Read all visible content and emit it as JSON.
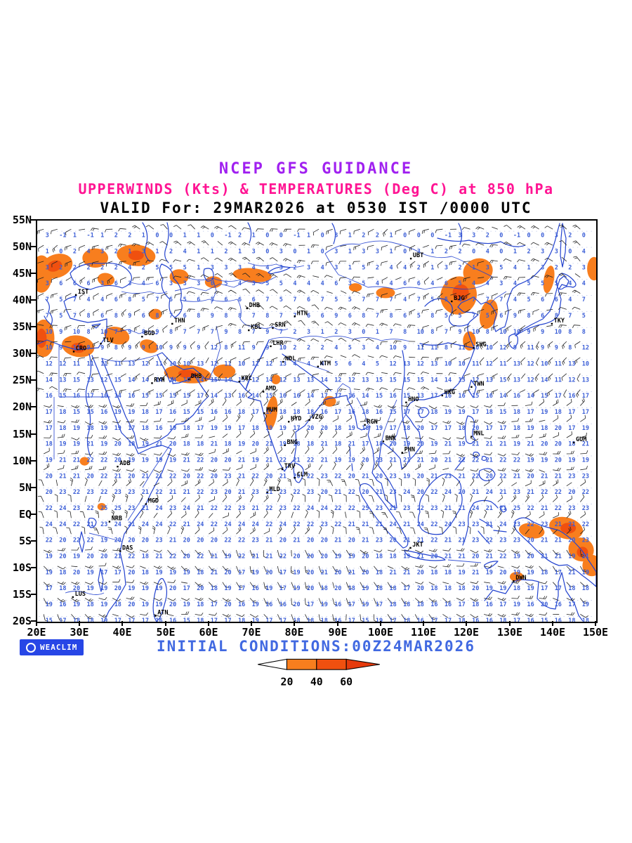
{
  "header": {
    "line1": "NCEP GFS GUIDANCE",
    "line2": "UPPERWINDS (Kts) & TEMPERATURES (Deg C) at 850 hPa",
    "line3": "VALID For: 29MAR2026 at 0530 IST /0000 UTC"
  },
  "footer": {
    "initial_conditions": "INITIAL CONDITIONS:00Z24MAR2026",
    "logo_text": "WEACLIM"
  },
  "colors": {
    "title1": "#A020F0",
    "title2": "#FF1493",
    "valid_text": "#000000",
    "annotation": "#4169E1",
    "coastline": "#2343CF",
    "temperature_text": "#3C5FD7",
    "barb": "#222222",
    "graticule": "#97A8DC",
    "shade20": "#F87E1E",
    "shade40": "#F0500F",
    "shade60": "#E63A0C",
    "legend_tail": "#FFFFFF",
    "logo_bg": "#2746E6",
    "axis_text": "#000000",
    "station_text": "#000000"
  },
  "map": {
    "lon_min": 20,
    "lon_max": 150,
    "lat_min": -20,
    "lat_max": 55,
    "lat_ticks": [
      {
        "label": "55N",
        "lat": 55
      },
      {
        "label": "50N",
        "lat": 50
      },
      {
        "label": "45N",
        "lat": 45
      },
      {
        "label": "40N",
        "lat": 40
      },
      {
        "label": "35N",
        "lat": 35
      },
      {
        "label": "30N",
        "lat": 30
      },
      {
        "label": "25N",
        "lat": 25
      },
      {
        "label": "20N",
        "lat": 20
      },
      {
        "label": "15N",
        "lat": 15
      },
      {
        "label": "10N",
        "lat": 10
      },
      {
        "label": "5N",
        "lat": 5
      },
      {
        "label": "EQ",
        "lat": 0
      },
      {
        "label": "5S",
        "lat": -5
      },
      {
        "label": "10S",
        "lat": -10
      },
      {
        "label": "15S",
        "lat": -15
      },
      {
        "label": "20S",
        "lat": -20
      }
    ],
    "lon_ticks": [
      {
        "label": "20E",
        "lon": 20
      },
      {
        "label": "30E",
        "lon": 30
      },
      {
        "label": "40E",
        "lon": 40
      },
      {
        "label": "50E",
        "lon": 50
      },
      {
        "label": "60E",
        "lon": 60
      },
      {
        "label": "70E",
        "lon": 70
      },
      {
        "label": "80E",
        "lon": 80
      },
      {
        "label": "90E",
        "lon": 90
      },
      {
        "label": "100E",
        "lon": 100
      },
      {
        "label": "110E",
        "lon": 110
      },
      {
        "label": "120E",
        "lon": 120
      },
      {
        "label": "130E",
        "lon": 130
      },
      {
        "label": "140E",
        "lon": 140
      },
      {
        "label": "150E",
        "lon": 150
      }
    ]
  },
  "wind_grid": {
    "lon_step": 3.2,
    "lat_step": 3.0,
    "barb_length": 9
  },
  "legend": {
    "labels": [
      "20",
      "40",
      "60"
    ]
  },
  "stations": [
    {
      "code": "IST",
      "lon": 29.0,
      "lat": 41.1
    },
    {
      "code": "CRO",
      "lon": 28.5,
      "lat": 30.5
    },
    {
      "code": "TLV",
      "lon": 34.8,
      "lat": 32.0
    },
    {
      "code": "BGD",
      "lon": 44.4,
      "lat": 33.3
    },
    {
      "code": "THN",
      "lon": 51.4,
      "lat": 35.7
    },
    {
      "code": "KBL",
      "lon": 69.2,
      "lat": 34.5
    },
    {
      "code": "SRN",
      "lon": 74.8,
      "lat": 34.9
    },
    {
      "code": "LHR",
      "lon": 74.3,
      "lat": 31.5
    },
    {
      "code": "DHB",
      "lon": 68.8,
      "lat": 38.6
    },
    {
      "code": "HTN",
      "lon": 79.9,
      "lat": 37.1
    },
    {
      "code": "RYH",
      "lon": 46.7,
      "lat": 24.6
    },
    {
      "code": "DHB",
      "lon": 55.3,
      "lat": 25.3
    },
    {
      "code": "KRC",
      "lon": 67.0,
      "lat": 24.9
    },
    {
      "code": "NDL",
      "lon": 77.2,
      "lat": 28.6
    },
    {
      "code": "KTM",
      "lon": 85.3,
      "lat": 27.7
    },
    {
      "code": "AMD",
      "lon": 72.6,
      "lat": 23.0
    },
    {
      "code": "MUM",
      "lon": 72.8,
      "lat": 19.0
    },
    {
      "code": "HYD",
      "lon": 78.5,
      "lat": 17.4
    },
    {
      "code": "VZG",
      "lon": 83.3,
      "lat": 17.7
    },
    {
      "code": "BNG",
      "lon": 77.6,
      "lat": 13.0
    },
    {
      "code": "TRV",
      "lon": 77.0,
      "lat": 8.5
    },
    {
      "code": "CLM",
      "lon": 79.9,
      "lat": 6.9
    },
    {
      "code": "MLD",
      "lon": 73.5,
      "lat": 4.2
    },
    {
      "code": "RGN",
      "lon": 96.2,
      "lat": 16.8
    },
    {
      "code": "BNK",
      "lon": 100.5,
      "lat": 13.7
    },
    {
      "code": "PHN",
      "lon": 104.9,
      "lat": 11.6
    },
    {
      "code": "HNO",
      "lon": 105.8,
      "lat": 21.0
    },
    {
      "code": "HKG",
      "lon": 114.2,
      "lat": 22.3
    },
    {
      "code": "TWN",
      "lon": 121.0,
      "lat": 23.9
    },
    {
      "code": "SHG",
      "lon": 121.5,
      "lat": 31.2
    },
    {
      "code": "BJG",
      "lon": 116.4,
      "lat": 39.9
    },
    {
      "code": "UBT",
      "lon": 106.9,
      "lat": 47.9
    },
    {
      "code": "TKY",
      "lon": 139.7,
      "lat": 35.7
    },
    {
      "code": "MNL",
      "lon": 121.0,
      "lat": 14.6
    },
    {
      "code": "GUM",
      "lon": 144.8,
      "lat": 13.5
    },
    {
      "code": "JKT",
      "lon": 106.8,
      "lat": -6.2
    },
    {
      "code": "DWN",
      "lon": 130.8,
      "lat": -12.4
    },
    {
      "code": "ADB",
      "lon": 38.7,
      "lat": 9.0
    },
    {
      "code": "MGD",
      "lon": 45.3,
      "lat": 2.0
    },
    {
      "code": "NRB",
      "lon": 36.8,
      "lat": -1.3
    },
    {
      "code": "DAS",
      "lon": 39.3,
      "lat": -6.8
    },
    {
      "code": "LUS",
      "lon": 28.3,
      "lat": -15.4
    },
    {
      "code": "ATN",
      "lon": 47.5,
      "lat": -18.9
    }
  ],
  "chart_data": {
    "type": "weather-map",
    "model": "NCEP GFS",
    "field": "Upper winds (Kts) and temperatures (Deg C) at 850 hPa",
    "valid": "29MAR2026 at 0530 IST / 0000 UTC",
    "initial_conditions": "00Z24MAR2026",
    "lon_range_deg_east": [
      20,
      150
    ],
    "lat_range_deg": [
      -20,
      55
    ],
    "wind_shade_thresholds_kts": [
      20,
      40,
      60
    ],
    "temperature_profile": [
      {
        "lat": -20,
        "t": 17
      },
      {
        "lat": -10,
        "t": 19
      },
      {
        "lat": 0,
        "t": 23
      },
      {
        "lat": 10,
        "t": 21
      },
      {
        "lat": 20,
        "t": 17
      },
      {
        "lat": 30,
        "t": 11
      },
      {
        "lat": 40,
        "t": 6
      },
      {
        "lat": 50,
        "t": 2
      },
      {
        "lat": 55,
        "t": 0
      }
    ],
    "shaded_regions": [
      {
        "lon": 21,
        "lat": 45,
        "rx": 2.5,
        "ry": 3.5,
        "rot": 0,
        "level": 1
      },
      {
        "lon": 24.5,
        "lat": 46.5,
        "rx": 3.8,
        "ry": 2.2,
        "rot": -20,
        "level": 1
      },
      {
        "lon": 33.5,
        "lat": 48,
        "rx": 3.0,
        "ry": 1.8,
        "rot": 0,
        "level": 1
      },
      {
        "lon": 43,
        "lat": 48.5,
        "rx": 4.5,
        "ry": 2.0,
        "rot": 5,
        "level": 1
      },
      {
        "lon": 36,
        "lat": 44,
        "rx": 2.0,
        "ry": 1.2,
        "rot": 10,
        "level": 1
      },
      {
        "lon": 53,
        "lat": 44.5,
        "rx": 2.2,
        "ry": 1.4,
        "rot": 0,
        "level": 1
      },
      {
        "lon": 61,
        "lat": 43.5,
        "rx": 2.0,
        "ry": 1.1,
        "rot": 0,
        "level": 1
      },
      {
        "lon": 70,
        "lat": 44.8,
        "rx": 4.5,
        "ry": 1.3,
        "rot": 5,
        "level": 1
      },
      {
        "lon": 21.5,
        "lat": 33,
        "rx": 2.5,
        "ry": 3.5,
        "rot": 0,
        "level": 1
      },
      {
        "lon": 29.5,
        "lat": 31.5,
        "rx": 3.8,
        "ry": 2.0,
        "rot": 10,
        "level": 1
      },
      {
        "lon": 38.5,
        "lat": 33.5,
        "rx": 3.0,
        "ry": 1.6,
        "rot": 15,
        "level": 1
      },
      {
        "lon": 46,
        "lat": 31.5,
        "rx": 2.2,
        "ry": 1.2,
        "rot": 20,
        "level": 1
      },
      {
        "lon": 47.5,
        "lat": 37.5,
        "rx": 1.5,
        "ry": 1.0,
        "rot": 0,
        "level": 1
      },
      {
        "lon": 55,
        "lat": 26.3,
        "rx": 5.5,
        "ry": 1.7,
        "rot": 5,
        "level": 1
      },
      {
        "lon": 63.5,
        "lat": 26.8,
        "rx": 2.6,
        "ry": 1.3,
        "rot": 0,
        "level": 1
      },
      {
        "lon": 74.5,
        "lat": 19,
        "rx": 1.3,
        "ry": 3.2,
        "rot": 8,
        "level": 1
      },
      {
        "lon": 75.5,
        "lat": 25.3,
        "rx": 1.1,
        "ry": 0.9,
        "rot": 0,
        "level": 1
      },
      {
        "lon": 88,
        "lat": 21.2,
        "rx": 1.5,
        "ry": 1.0,
        "rot": 0,
        "level": 1
      },
      {
        "lon": 101,
        "lat": 41.5,
        "rx": 2.2,
        "ry": 1.0,
        "rot": 0,
        "level": 1
      },
      {
        "lon": 94,
        "lat": 42.5,
        "rx": 1.5,
        "ry": 0.8,
        "rot": 0,
        "level": 1
      },
      {
        "lon": 118,
        "lat": 41,
        "rx": 4.2,
        "ry": 3.6,
        "rot": 20,
        "level": 1
      },
      {
        "lon": 122.5,
        "lat": 45.5,
        "rx": 3.5,
        "ry": 2.4,
        "rot": -20,
        "level": 1
      },
      {
        "lon": 125,
        "lat": 37.5,
        "rx": 2.0,
        "ry": 2.8,
        "rot": 15,
        "level": 1
      },
      {
        "lon": 120.5,
        "lat": 32.5,
        "rx": 1.5,
        "ry": 1.8,
        "rot": 0,
        "level": 1
      },
      {
        "lon": 139,
        "lat": 44,
        "rx": 1.2,
        "ry": 2.6,
        "rot": 10,
        "level": 1
      },
      {
        "lon": 149.5,
        "lat": 46,
        "rx": 1.6,
        "ry": 2.2,
        "rot": 0,
        "level": 1
      },
      {
        "lon": 135,
        "lat": -3,
        "rx": 3.0,
        "ry": 1.4,
        "rot": 10,
        "level": 1
      },
      {
        "lon": 143,
        "lat": -2.5,
        "rx": 4.0,
        "ry": 2.0,
        "rot": 15,
        "level": 1
      },
      {
        "lon": 146.5,
        "lat": -6.5,
        "rx": 3.0,
        "ry": 2.2,
        "rot": 25,
        "level": 1
      },
      {
        "lon": 149,
        "lat": -9.5,
        "rx": 2.2,
        "ry": 2.0,
        "rot": 0,
        "level": 1
      },
      {
        "lon": 131.5,
        "lat": -11.6,
        "rx": 1.6,
        "ry": 0.9,
        "rot": 0,
        "level": 1
      },
      {
        "lon": 31,
        "lat": 10,
        "rx": 1.1,
        "ry": 0.8,
        "rot": 0,
        "level": 1
      },
      {
        "lon": 35,
        "lat": 1.5,
        "rx": 1.0,
        "ry": 0.7,
        "rot": 0,
        "level": 1
      },
      {
        "lon": 24,
        "lat": 46.5,
        "rx": 1.8,
        "ry": 1.0,
        "rot": -20,
        "level": 2
      },
      {
        "lon": 43,
        "lat": 48.5,
        "rx": 1.8,
        "ry": 0.9,
        "rot": 0,
        "level": 2
      },
      {
        "lon": 29.5,
        "lat": 31.2,
        "rx": 1.6,
        "ry": 0.9,
        "rot": 10,
        "level": 2
      },
      {
        "lon": 55,
        "lat": 26.3,
        "rx": 2.2,
        "ry": 0.8,
        "rot": 5,
        "level": 2
      },
      {
        "lon": 118.5,
        "lat": 41.5,
        "rx": 1.9,
        "ry": 1.6,
        "rot": 0,
        "level": 2
      },
      {
        "lon": 143.5,
        "lat": -2.5,
        "rx": 1.8,
        "ry": 1.0,
        "rot": 0,
        "level": 2
      },
      {
        "lon": 146.8,
        "lat": -7,
        "rx": 1.3,
        "ry": 1.0,
        "rot": 0,
        "level": 2
      },
      {
        "lon": 21,
        "lat": 33,
        "rx": 1.2,
        "ry": 1.8,
        "rot": 0,
        "level": 2
      }
    ]
  }
}
